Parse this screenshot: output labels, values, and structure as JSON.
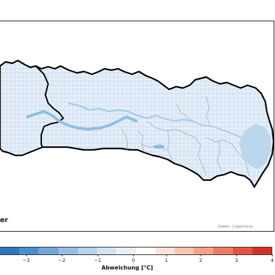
{
  "map": {
    "cutoff_label": "er",
    "credit": "Daten: Copernicus",
    "colors": {
      "region_base": "#dbe8f5",
      "region_light": "#eaf2fa",
      "valley": "#8fbfe0",
      "border": "#000000",
      "district_lines": "#9aa6b2"
    }
  },
  "colorbar": {
    "title": "Abweichung [°C]",
    "ticks": [
      "−3",
      "−2",
      "−1",
      "0",
      "1",
      "2",
      "3",
      "4"
    ],
    "colors": [
      "#2b78bf",
      "#4a8fcc",
      "#6ea7d8",
      "#95bfe4",
      "#b6d2ec",
      "#d2e4f4",
      "#e8f1f9",
      "#ffffff",
      "#fde3d6",
      "#fbc6ad",
      "#f7a086",
      "#f07a61",
      "#e6523f",
      "#d52e24"
    ]
  }
}
